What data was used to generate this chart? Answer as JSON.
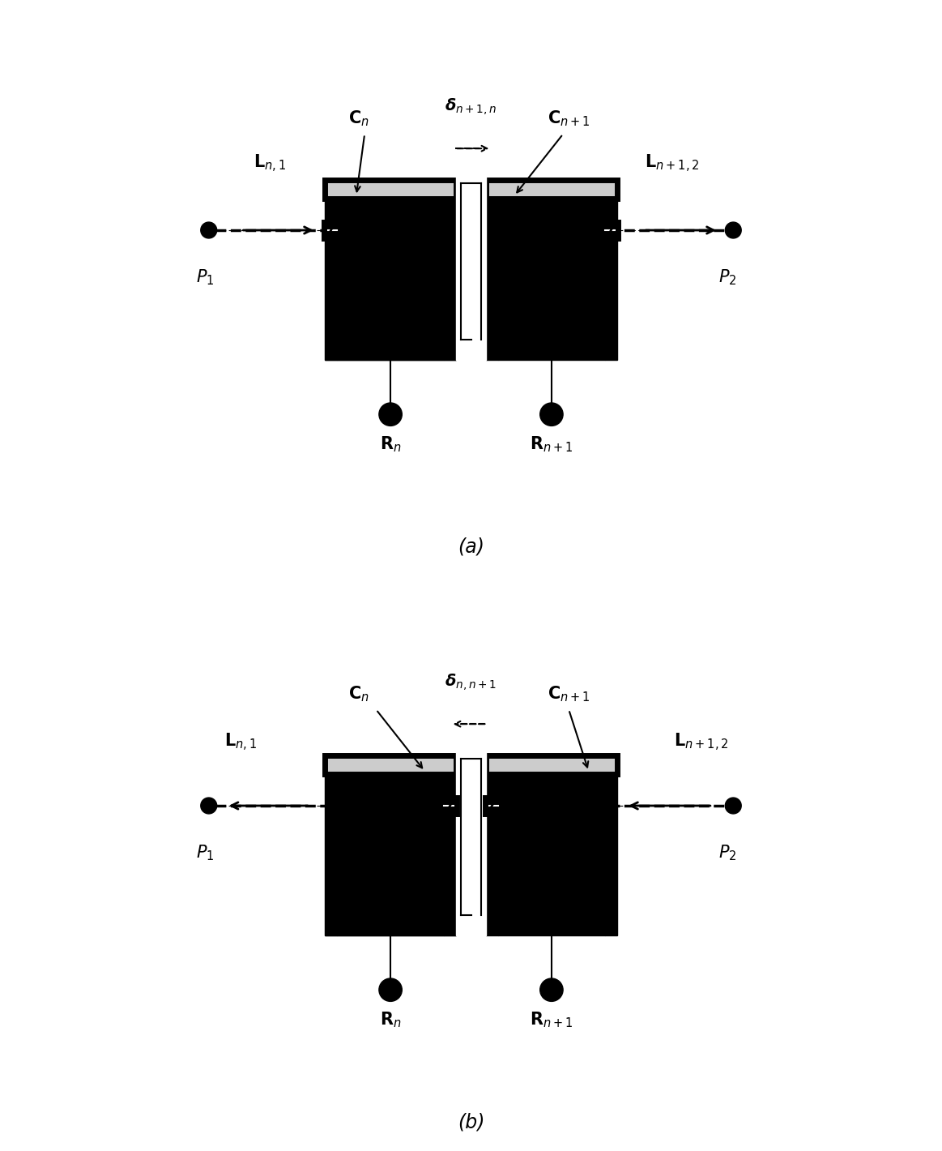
{
  "fig_width": 11.63,
  "fig_height": 14.2,
  "bg_color": "#ffffff",
  "lw_thick": 5.0,
  "lw_med": 2.5,
  "lw_thin": 1.5,
  "gray_fill": "#cccccc",
  "black": "#000000",
  "white": "#ffffff",
  "diagram_a": {
    "title": "(a)",
    "arrow_dir": "right",
    "delta_label": "$\\boldsymbol{\\delta}_{n+1,n}$",
    "cn_label": "$\\mathbf{C}_n$",
    "cnp1_label": "$\\mathbf{C}_{n+1}$",
    "ln1_label": "$\\mathbf{L}_{n,1}$",
    "lnp12_label": "$\\mathbf{L}_{n+1,2}$",
    "rn_label": "$\\mathbf{R}_n$",
    "rnp1_label": "$\\mathbf{R}_{n+1}$",
    "p1_label": "$P_1$",
    "p2_label": "$P_2$"
  },
  "diagram_b": {
    "title": "(b)",
    "arrow_dir": "left",
    "delta_label": "$\\boldsymbol{\\delta}_{n,n+1}$",
    "cn_label": "$\\mathbf{C}_n$",
    "cnp1_label": "$\\mathbf{C}_{n+1}$",
    "ln1_label": "$\\mathbf{L}_{n,1}$",
    "lnp12_label": "$\\mathbf{L}_{n+1,2}$",
    "rn_label": "$\\mathbf{R}_n$",
    "rnp1_label": "$\\mathbf{R}_{n+1}$",
    "p1_label": "$P_1$",
    "p2_label": "$P_2$"
  }
}
